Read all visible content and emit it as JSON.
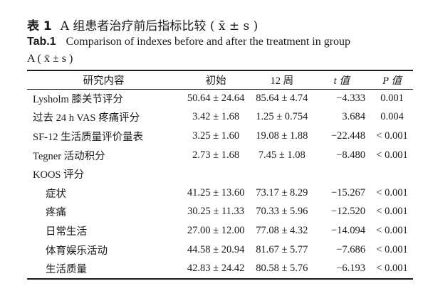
{
  "caption": {
    "cn_tag": "表 1",
    "cn_text": "A 组患者治疗前后指标比较 ( x̄ ± s )",
    "en_tag": "Tab.1",
    "en_text_line1": "Comparison of indexes before and after the treatment in group",
    "en_text_line2": "A ( x̄ ± s )"
  },
  "table": {
    "headers": [
      "研究内容",
      "初始",
      "12 周",
      "t 值",
      "P 值"
    ],
    "rows": [
      {
        "item": "Lysholm 膝关节评分",
        "baseline": "50.64 ± 24.64",
        "week12": "85.64 ± 4.74",
        "t": "−4.333",
        "p": "0.001"
      },
      {
        "item": "过去 24 h VAS 疼痛评分",
        "baseline": "3.42 ±  1.68",
        "week12": "1.25 ± 0.754",
        "t": "3.684",
        "p": "0.004"
      },
      {
        "item": "SF-12 生活质量评价量表",
        "baseline": "3.25 ±  1.60",
        "week12": "19.08 ± 1.88",
        "t": "−22.448",
        "p": "< 0.001"
      },
      {
        "item": "Tegner 活动积分",
        "baseline": "2.73 ±  1.68",
        "week12": "7.45 ± 1.08",
        "t": "−8.480",
        "p": "< 0.001"
      },
      {
        "item": "KOOS 评分",
        "baseline": "",
        "week12": "",
        "t": "",
        "p": ""
      },
      {
        "item": "症状",
        "baseline": "41.25 ± 13.60",
        "week12": "73.17 ± 8.29",
        "t": "−15.267",
        "p": "< 0.001"
      },
      {
        "item": "疼痛",
        "baseline": "30.25 ± 11.33",
        "week12": "70.33 ± 5.96",
        "t": "−12.520",
        "p": "< 0.001"
      },
      {
        "item": "日常生活",
        "baseline": "27.00 ± 12.00",
        "week12": "77.08 ± 4.32",
        "t": "−14.094",
        "p": "< 0.001"
      },
      {
        "item": "体育娱乐活动",
        "baseline": "44.58 ± 20.94",
        "week12": "81.67 ± 5.77",
        "t": "−7.686",
        "p": "< 0.001"
      },
      {
        "item": "生活质量",
        "baseline": "42.83 ± 24.42",
        "week12": "80.58 ± 5.76",
        "t": "−6.193",
        "p": "< 0.001"
      }
    ]
  }
}
